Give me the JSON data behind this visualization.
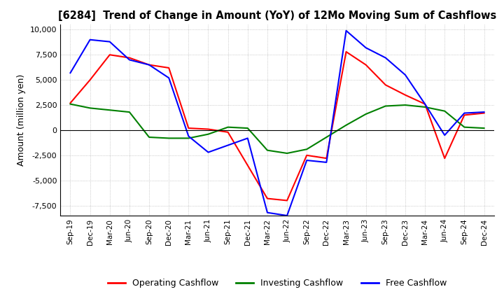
{
  "title": "[6284]  Trend of Change in Amount (YoY) of 12Mo Moving Sum of Cashflows",
  "ylabel": "Amount (million yen)",
  "ylim": [
    -8500,
    10500
  ],
  "yticks": [
    -7500,
    -5000,
    -2500,
    0,
    2500,
    5000,
    7500,
    10000
  ],
  "x_labels": [
    "Sep-19",
    "Dec-19",
    "Mar-20",
    "Jun-20",
    "Sep-20",
    "Dec-20",
    "Mar-21",
    "Jun-21",
    "Sep-21",
    "Dec-21",
    "Mar-22",
    "Jun-22",
    "Sep-22",
    "Dec-22",
    "Mar-23",
    "Jun-23",
    "Sep-23",
    "Dec-23",
    "Mar-24",
    "Jun-24",
    "Sep-24",
    "Dec-24"
  ],
  "operating": [
    2700,
    5000,
    7500,
    7200,
    6500,
    6200,
    200,
    100,
    -200,
    -3500,
    -6800,
    -7000,
    -2500,
    -2800,
    7800,
    6500,
    4500,
    3500,
    2600,
    -2800,
    1500,
    1700
  ],
  "investing": [
    2600,
    2200,
    2000,
    1800,
    -700,
    -800,
    -800,
    -400,
    300,
    200,
    -2000,
    -2300,
    -1900,
    -700,
    500,
    1600,
    2400,
    2500,
    2300,
    1900,
    300,
    200
  ],
  "free": [
    5700,
    9000,
    8800,
    7000,
    6500,
    5200,
    -600,
    -2200,
    -1500,
    -800,
    -8200,
    -8500,
    -3000,
    -3200,
    9900,
    8200,
    7200,
    5500,
    2600,
    -500,
    1700,
    1800
  ],
  "operating_color": "#ff0000",
  "investing_color": "#008000",
  "free_color": "#0000ff",
  "bg_color": "#ffffff",
  "grid_color": "#aaaaaa"
}
